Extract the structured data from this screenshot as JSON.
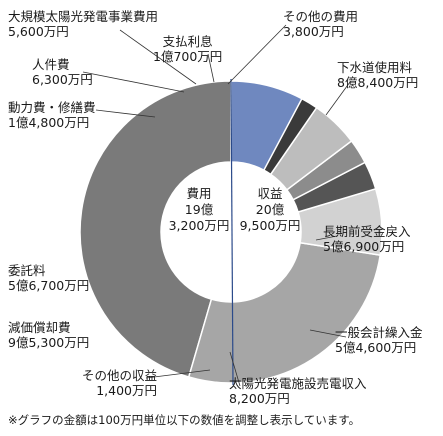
{
  "chart_data": {
    "type": "donut",
    "unit": "万円",
    "income": {
      "title": "収益",
      "total_line1": "20億",
      "total_line2": "9,500万円",
      "segments": [
        {
          "name": "下水道使用料",
          "amount_text": "8億8,400万円",
          "value": 88400,
          "color": "#6f88bf"
        },
        {
          "name": "長期前受金戻入",
          "amount_text": "5億6,900万円",
          "value": 56900,
          "color": "#c4cfe8"
        },
        {
          "name": "一般会計繰入金",
          "amount_text": "5億4,600万円",
          "value": 54600,
          "color": "#99abd5"
        },
        {
          "name": "太陽光発電施設売電収入",
          "amount_text": "8,200万円",
          "value": 8200,
          "color": "#3e5fa6"
        },
        {
          "name": "その他の収益",
          "amount_text": "1,400万円",
          "value": 1400,
          "color": "#2a3f73"
        }
      ]
    },
    "expense": {
      "title": "費用",
      "total_line1": "19億",
      "total_line2": "3,200万円",
      "segments": [
        {
          "name": "減価償却費",
          "amount_text": "9億5,300万円",
          "value": 95300,
          "color": "#7a7a7a"
        },
        {
          "name": "委託料",
          "amount_text": "5億6,700万円",
          "value": 56700,
          "color": "#a6a6a6"
        },
        {
          "name": "動力費・修繕費",
          "amount_text": "1億4,800万円",
          "value": 14800,
          "color": "#d2d2d2"
        },
        {
          "name": "人件費",
          "amount_text": "6,300万円",
          "value": 6300,
          "color": "#555555"
        },
        {
          "name": "大規模太陽光発電事業費用",
          "amount_text": "5,600万円",
          "value": 5600,
          "color": "#8c8c8c"
        },
        {
          "name": "支払利息",
          "amount_text": "1億700万円",
          "value": 10700,
          "color": "#bdbdbd"
        },
        {
          "name": "その他の費用",
          "amount_text": "3,800万円",
          "value": 3800,
          "color": "#3a3a3a"
        }
      ]
    }
  },
  "footnote": "※グラフの金額は100万円単位以下の数値を調整し表示しています。"
}
